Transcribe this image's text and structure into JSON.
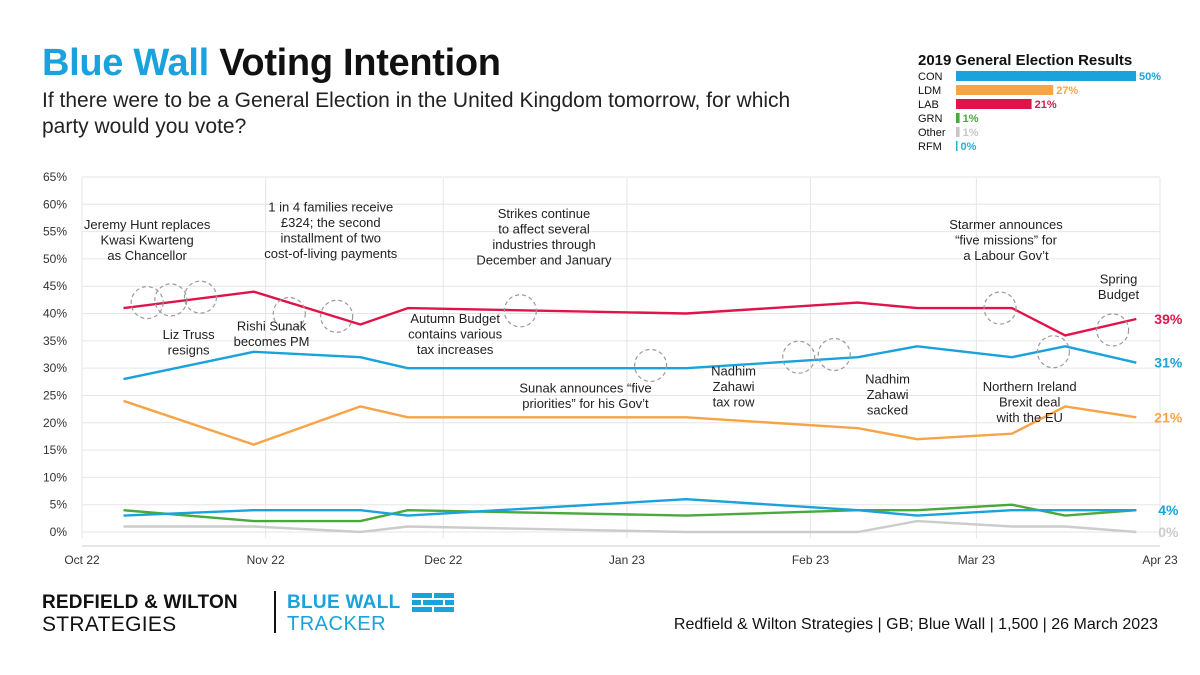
{
  "header": {
    "title_blue": "Blue Wall",
    "title_black": "Voting Intention",
    "subtitle": "If there were to be a General Election in the United Kingdom tomorrow, for which party would you vote?"
  },
  "results_2019": {
    "title": "2019 General Election Results",
    "rows": [
      {
        "party": "CON",
        "value": 50,
        "label": "50%",
        "color": "#1aa2dd"
      },
      {
        "party": "LDM",
        "value": 27,
        "label": "27%",
        "color": "#f6a446"
      },
      {
        "party": "LAB",
        "value": 21,
        "label": "21%",
        "color": "#e0144a"
      },
      {
        "party": "GRN",
        "value": 1,
        "label": "1%",
        "color": "#4aa93c"
      },
      {
        "party": "Other",
        "value": 1,
        "label": "1%",
        "color": "#c8c8c8"
      },
      {
        "party": "RFM",
        "value": 0,
        "label": "0%",
        "color": "#1ab8d0"
      }
    ]
  },
  "chart_data": {
    "type": "line",
    "title": "Blue Wall Voting Intention",
    "ylim": [
      0,
      65
    ],
    "yticks": [
      0,
      5,
      10,
      15,
      20,
      25,
      30,
      35,
      40,
      45,
      50,
      55,
      60,
      65
    ],
    "ytick_labels": [
      "0%",
      "5%",
      "10%",
      "15%",
      "20%",
      "25%",
      "30%",
      "35%",
      "40%",
      "45%",
      "50%",
      "55%",
      "60%",
      "65%"
    ],
    "xlim_days": [
      0,
      182
    ],
    "xticks": [
      {
        "label": "Oct 22",
        "day": 0
      },
      {
        "label": "Nov 22",
        "day": 31
      },
      {
        "label": "Dec 22",
        "day": 61
      },
      {
        "label": "Jan 23",
        "day": 92
      },
      {
        "label": "Feb 23",
        "day": 123
      },
      {
        "label": "Mar 23",
        "day": 151
      },
      {
        "label": "Apr 23",
        "day": 182
      }
    ],
    "x_days": [
      7,
      29,
      47,
      55,
      102,
      131,
      141,
      157,
      166,
      178
    ],
    "series": [
      {
        "name": "LAB",
        "color": "#e0144a",
        "values": [
          41,
          44,
          38,
          41,
          40,
          42,
          41,
          41,
          36,
          39
        ],
        "end_label": "39%"
      },
      {
        "name": "CON",
        "color": "#1aa2dd",
        "values": [
          28,
          33,
          32,
          30,
          30,
          32,
          34,
          32,
          34,
          31
        ],
        "end_label": "31%"
      },
      {
        "name": "LDM",
        "color": "#f6a446",
        "values": [
          24,
          16,
          23,
          21,
          21,
          19,
          17,
          18,
          23,
          21
        ],
        "end_label": "21%"
      },
      {
        "name": "RFM",
        "color": "#1aa2dd",
        "values": [
          3,
          4,
          4,
          3,
          6,
          4,
          3,
          4,
          4,
          4
        ],
        "end_label": "4%"
      },
      {
        "name": "GRN",
        "color": "#4aa93c",
        "values": [
          4,
          2,
          2,
          4,
          3,
          4,
          4,
          5,
          3,
          4
        ],
        "end_label": ""
      },
      {
        "name": "Other",
        "color": "#cccccc",
        "values": [
          1,
          1,
          0,
          1,
          0,
          0,
          2,
          1,
          1,
          0
        ],
        "end_label": "0%"
      }
    ],
    "event_markers": [
      {
        "day": 11,
        "value": 42
      },
      {
        "day": 15,
        "value": 42.5
      },
      {
        "day": 20,
        "value": 43
      },
      {
        "day": 35,
        "value": 40
      },
      {
        "day": 43,
        "value": 39.5
      },
      {
        "day": 74,
        "value": 40.5
      },
      {
        "day": 96,
        "value": 30.5
      },
      {
        "day": 121,
        "value": 32
      },
      {
        "day": 127,
        "value": 32.5
      },
      {
        "day": 155,
        "value": 41
      },
      {
        "day": 164,
        "value": 33
      },
      {
        "day": 174,
        "value": 37
      }
    ],
    "annotations": [
      {
        "lines": [
          "Jeremy Hunt replaces",
          "Kwasi Kwarteng",
          "as Chancellor"
        ],
        "day": 11,
        "value": 55.5,
        "anchor": "middle"
      },
      {
        "lines": [
          "Liz Truss",
          "resigns"
        ],
        "day": 18,
        "value": 35.3,
        "anchor": "middle"
      },
      {
        "lines": [
          "Rishi Sunak",
          "becomes PM"
        ],
        "day": 32,
        "value": 36.9,
        "anchor": "middle"
      },
      {
        "lines": [
          "1 in 4 families receive",
          "£324; the second",
          "installment of two",
          "cost-of-living payments"
        ],
        "day": 42,
        "value": 58.7,
        "anchor": "middle"
      },
      {
        "lines": [
          "Autumn Budget",
          "contains various",
          "tax increases"
        ],
        "day": 63,
        "value": 38.3,
        "anchor": "middle"
      },
      {
        "lines": [
          "Strikes continue",
          "to affect several",
          "industries through",
          "December and January"
        ],
        "day": 78,
        "value": 57.5,
        "anchor": "middle"
      },
      {
        "lines": [
          "Sunak announces “five",
          "priorities” for his Gov’t"
        ],
        "day": 85,
        "value": 25.5,
        "anchor": "middle"
      },
      {
        "lines": [
          "Nadhim",
          "Zahawi",
          "tax row"
        ],
        "day": 110,
        "value": 28.7,
        "anchor": "middle"
      },
      {
        "lines": [
          "Nadhim",
          "Zahawi",
          "sacked"
        ],
        "day": 136,
        "value": 27.2,
        "anchor": "middle"
      },
      {
        "lines": [
          "Starmer announces",
          "“five missions” for",
          "a Labour Gov’t"
        ],
        "day": 156,
        "value": 55.5,
        "anchor": "middle"
      },
      {
        "lines": [
          "Northern Ireland",
          "Brexit deal",
          "with the EU"
        ],
        "day": 160,
        "value": 25.8,
        "anchor": "middle"
      },
      {
        "lines": [
          "Spring",
          "Budget"
        ],
        "day": 175,
        "value": 45.5,
        "anchor": "middle"
      }
    ]
  },
  "footer": {
    "brand_line1": "REDFIELD & WILTON",
    "brand_line2": "STRATEGIES",
    "tracker_line1": "BLUE WALL",
    "tracker_line2": "TRACKER",
    "source": "Redfield & Wilton Strategies | GB; Blue Wall | 1,500 | 26 March 2023"
  }
}
